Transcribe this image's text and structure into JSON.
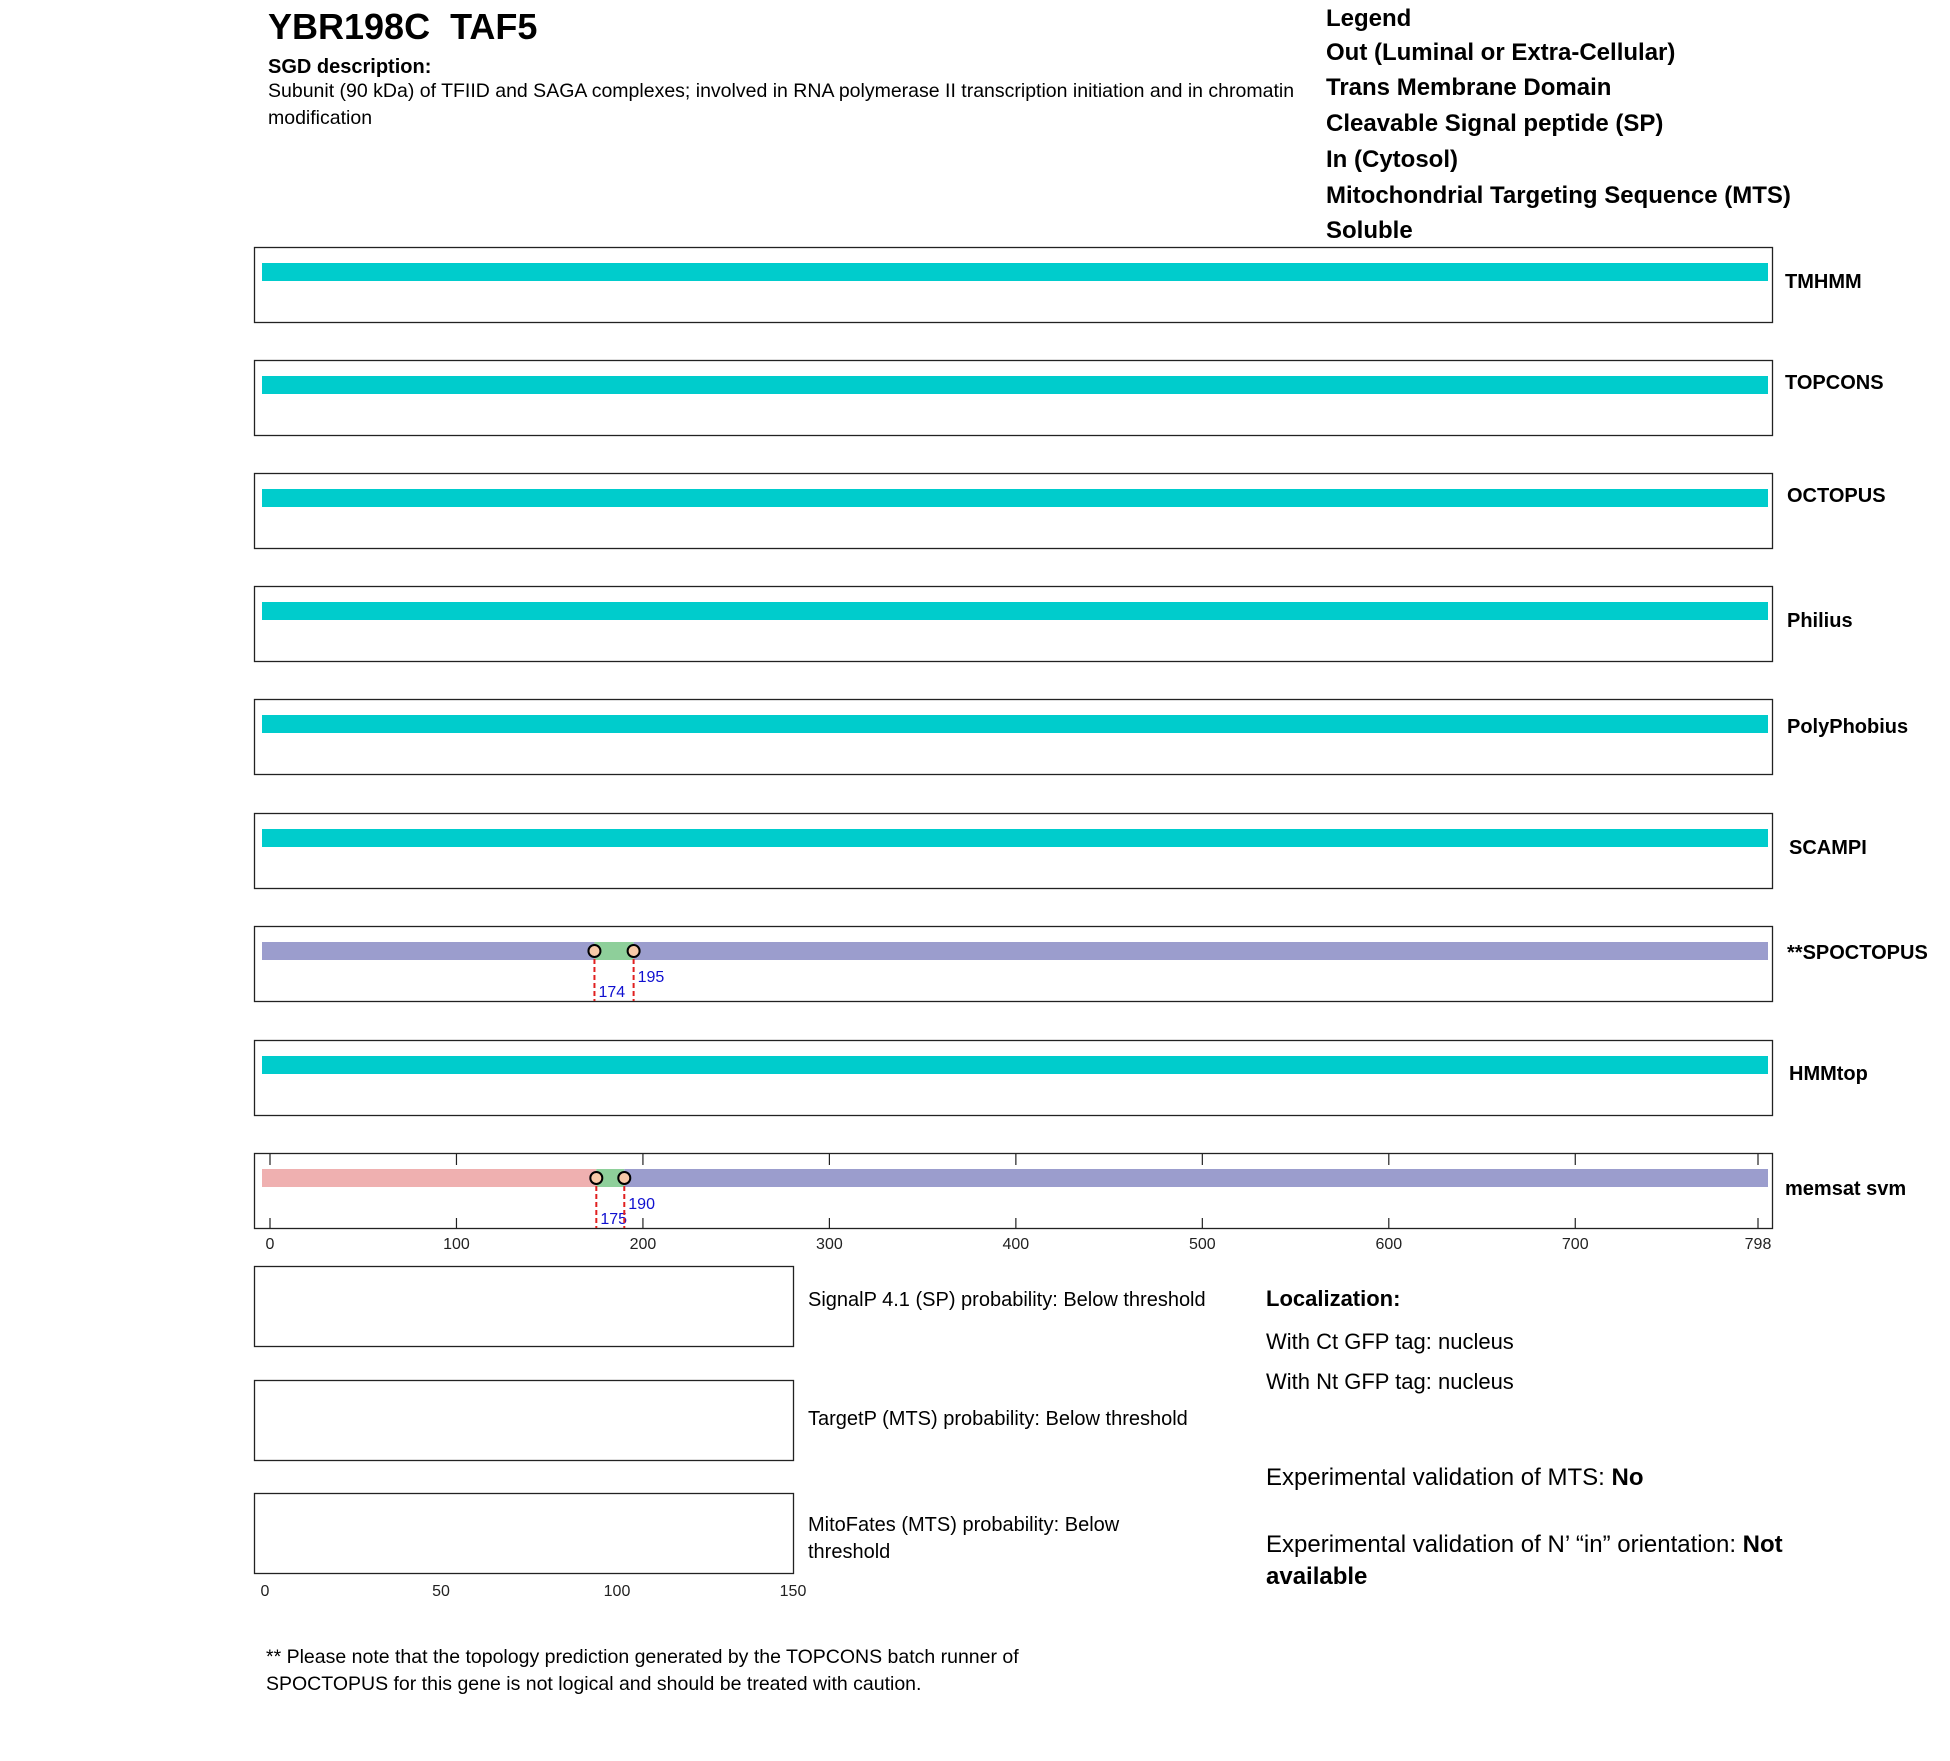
{
  "header": {
    "title": "YBR198C  TAF5",
    "sgd_heading": "SGD description:",
    "sgd_description": "Subunit (90 kDa) of TFIID and SAGA complexes; involved in RNA polymerase II transcription initiation and in chromatin modification"
  },
  "legend": {
    "title": "Legend",
    "items": [
      {
        "label": "Out (Luminal or Extra-Cellular)",
        "color": "#9b9dcd"
      },
      {
        "label": "Trans Membrane Domain",
        "color": "#8ecf9a"
      },
      {
        "label": "Cleavable Signal peptide (SP)",
        "color": "#b6d7ef"
      },
      {
        "label": "In (Cytosol)",
        "color": "#efb0b0"
      },
      {
        "label": "Mitochondrial Targeting Sequence (MTS)",
        "color": "#edb02b"
      },
      {
        "label": "Soluble",
        "color": "#00cccc"
      }
    ]
  },
  "chart_data": {
    "type": "topology-tracks",
    "sequence_length": 798,
    "x_ticks": [
      0,
      100,
      200,
      300,
      400,
      500,
      600,
      700,
      798
    ],
    "tracks": [
      {
        "name": "TMHMM",
        "segments": [
          {
            "type": "soluble",
            "start": 1,
            "end": 798
          }
        ]
      },
      {
        "name": "TOPCONS",
        "segments": [
          {
            "type": "soluble",
            "start": 1,
            "end": 798
          }
        ]
      },
      {
        "name": "OCTOPUS",
        "segments": [
          {
            "type": "soluble",
            "start": 1,
            "end": 798
          }
        ]
      },
      {
        "name": "Philius",
        "segments": [
          {
            "type": "soluble",
            "start": 1,
            "end": 798
          }
        ]
      },
      {
        "name": "PolyPhobius",
        "segments": [
          {
            "type": "soluble",
            "start": 1,
            "end": 798
          }
        ]
      },
      {
        "name": "SCAMPI",
        "segments": [
          {
            "type": "soluble",
            "start": 1,
            "end": 798
          }
        ]
      },
      {
        "name": "**SPOCTOPUS",
        "segments": [
          {
            "type": "out",
            "start": 1,
            "end": 174
          },
          {
            "type": "tm",
            "start": 174,
            "end": 195
          },
          {
            "type": "out",
            "start": 195,
            "end": 798
          }
        ],
        "markers": [
          174,
          195
        ]
      },
      {
        "name": "HMMtop",
        "segments": [
          {
            "type": "soluble",
            "start": 1,
            "end": 798
          }
        ]
      },
      {
        "name": "memsat svm",
        "segments": [
          {
            "type": "in",
            "start": 1,
            "end": 175
          },
          {
            "type": "tm",
            "start": 175,
            "end": 190
          },
          {
            "type": "out",
            "start": 190,
            "end": 798
          }
        ],
        "markers": [
          175,
          190
        ]
      }
    ],
    "probability_axis": {
      "ticks": [
        0,
        50,
        100,
        150
      ]
    }
  },
  "probabilities": [
    {
      "label": "SignalP 4.1 (SP) probability: Below threshold"
    },
    {
      "label": "TargetP (MTS) probability: Below threshold"
    },
    {
      "label": "MitoFates (MTS) probability: Below threshold"
    }
  ],
  "localization": {
    "heading": "Localization:",
    "ct": "With Ct GFP tag: nucleus",
    "nt": "With Nt GFP tag: nucleus"
  },
  "experimental": {
    "mts_prefix": "Experimental validation of MTS: ",
    "mts_value": "No",
    "orient_prefix": "Experimental validation of N’ “in” orientation: ",
    "orient_value": "Not available"
  },
  "footnote": "** Please note that the topology prediction generated by the TOPCONS batch runner of SPOCTOPUS for this gene is not logical and should be treated with caution."
}
